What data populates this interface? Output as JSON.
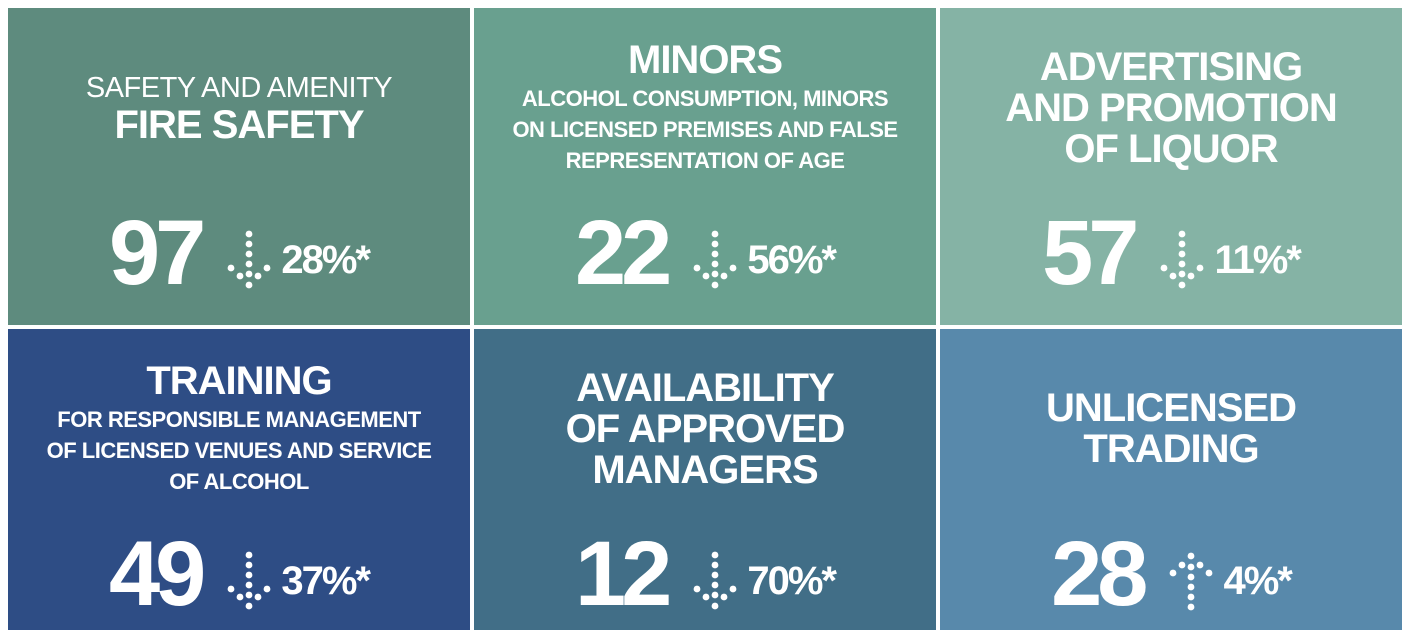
{
  "tiles": [
    {
      "lead": [
        "SAFETY AND AMENITY"
      ],
      "title": [
        "FIRE SAFETY"
      ],
      "count": "97",
      "direction": "down",
      "change": "28%*",
      "color": "#5e8b7e"
    },
    {
      "title": [
        "MINORS"
      ],
      "subtitle": [
        "ALCOHOL CONSUMPTION, MINORS",
        "ON LICENSED PREMISES AND FALSE",
        "REPRESENTATION OF AGE"
      ],
      "count": "22",
      "direction": "down",
      "change": "56%*",
      "color": "#69a08f"
    },
    {
      "title": [
        "ADVERTISING",
        "AND PROMOTION",
        "OF LIQUOR"
      ],
      "count": "57",
      "direction": "down",
      "change": "11%*",
      "color": "#85b3a5"
    },
    {
      "title": [
        "TRAINING"
      ],
      "subtitle": [
        "FOR RESPONSIBLE MANAGEMENT",
        "OF LICENSED VENUES AND SERVICE",
        "OF ALCOHOL"
      ],
      "count": "49",
      "direction": "down",
      "change": "37%*",
      "color": "#2e4d85"
    },
    {
      "title": [
        "AVAILABILITY",
        "OF APPROVED",
        "MANAGERS"
      ],
      "count": "12",
      "direction": "down",
      "change": "70%*",
      "color": "#416e87"
    },
    {
      "title": [
        "UNLICENSED",
        "TRADING"
      ],
      "count": "28",
      "direction": "up",
      "change": "4%*",
      "color": "#5889ab"
    }
  ]
}
